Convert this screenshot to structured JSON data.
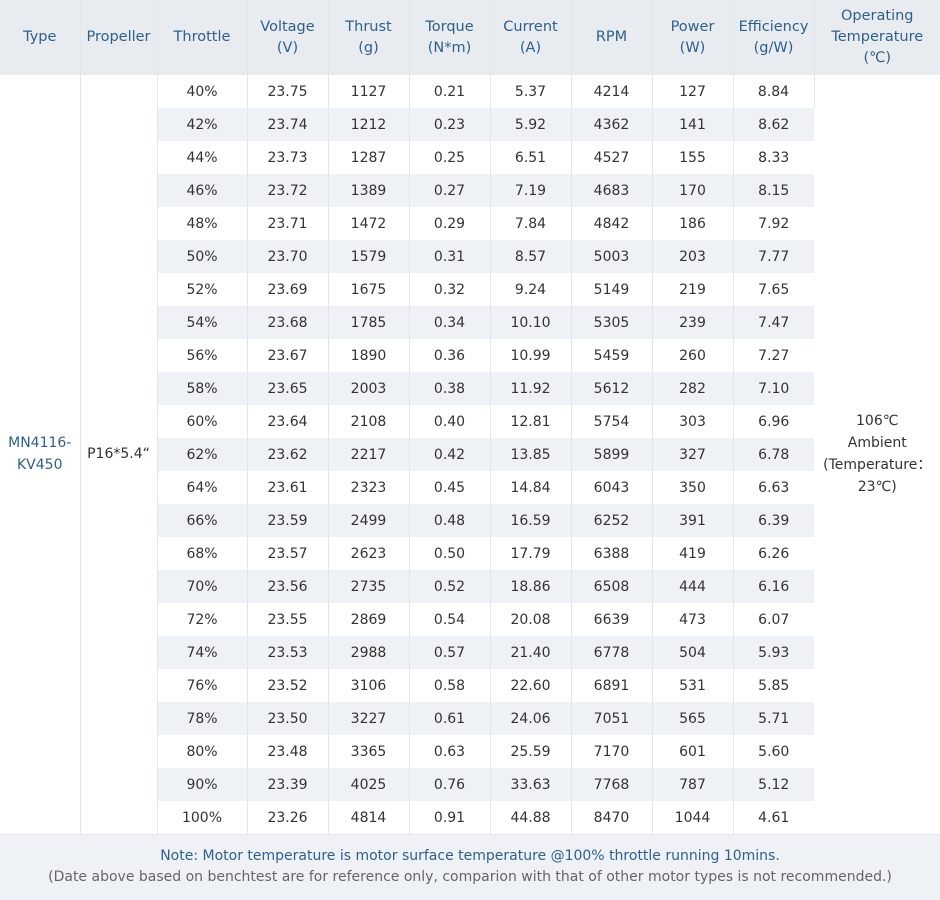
{
  "columns": [
    [
      "Type"
    ],
    [
      "Propeller"
    ],
    [
      "Throttle"
    ],
    [
      "Voltage",
      "(V)"
    ],
    [
      "Thrust",
      "(g)"
    ],
    [
      "Torque",
      "(N*m)"
    ],
    [
      "Current",
      "(A)"
    ],
    [
      "RPM"
    ],
    [
      "Power",
      "(W)"
    ],
    [
      "Efficiency",
      "(g/W)"
    ],
    [
      "Operating",
      "Temperature",
      "(℃)"
    ]
  ],
  "type_label": [
    "MN4116-",
    "KV450"
  ],
  "propeller": "P16*5.4“",
  "operating_temperature": [
    "106℃",
    "Ambient",
    "(Temperature：",
    "23℃)"
  ],
  "rows": [
    [
      "40%",
      "23.75",
      "1127",
      "0.21",
      "5.37",
      "4214",
      "127",
      "8.84"
    ],
    [
      "42%",
      "23.74",
      "1212",
      "0.23",
      "5.92",
      "4362",
      "141",
      "8.62"
    ],
    [
      "44%",
      "23.73",
      "1287",
      "0.25",
      "6.51",
      "4527",
      "155",
      "8.33"
    ],
    [
      "46%",
      "23.72",
      "1389",
      "0.27",
      "7.19",
      "4683",
      "170",
      "8.15"
    ],
    [
      "48%",
      "23.71",
      "1472",
      "0.29",
      "7.84",
      "4842",
      "186",
      "7.92"
    ],
    [
      "50%",
      "23.70",
      "1579",
      "0.31",
      "8.57",
      "5003",
      "203",
      "7.77"
    ],
    [
      "52%",
      "23.69",
      "1675",
      "0.32",
      "9.24",
      "5149",
      "219",
      "7.65"
    ],
    [
      "54%",
      "23.68",
      "1785",
      "0.34",
      "10.10",
      "5305",
      "239",
      "7.47"
    ],
    [
      "56%",
      "23.67",
      "1890",
      "0.36",
      "10.99",
      "5459",
      "260",
      "7.27"
    ],
    [
      "58%",
      "23.65",
      "2003",
      "0.38",
      "11.92",
      "5612",
      "282",
      "7.10"
    ],
    [
      "60%",
      "23.64",
      "2108",
      "0.40",
      "12.81",
      "5754",
      "303",
      "6.96"
    ],
    [
      "62%",
      "23.62",
      "2217",
      "0.42",
      "13.85",
      "5899",
      "327",
      "6.78"
    ],
    [
      "64%",
      "23.61",
      "2323",
      "0.45",
      "14.84",
      "6043",
      "350",
      "6.63"
    ],
    [
      "66%",
      "23.59",
      "2499",
      "0.48",
      "16.59",
      "6252",
      "391",
      "6.39"
    ],
    [
      "68%",
      "23.57",
      "2623",
      "0.50",
      "17.79",
      "6388",
      "419",
      "6.26"
    ],
    [
      "70%",
      "23.56",
      "2735",
      "0.52",
      "18.86",
      "6508",
      "444",
      "6.16"
    ],
    [
      "72%",
      "23.55",
      "2869",
      "0.54",
      "20.08",
      "6639",
      "473",
      "6.07"
    ],
    [
      "74%",
      "23.53",
      "2988",
      "0.57",
      "21.40",
      "6778",
      "504",
      "5.93"
    ],
    [
      "76%",
      "23.52",
      "3106",
      "0.58",
      "22.60",
      "6891",
      "531",
      "5.85"
    ],
    [
      "78%",
      "23.50",
      "3227",
      "0.61",
      "24.06",
      "7051",
      "565",
      "5.71"
    ],
    [
      "80%",
      "23.48",
      "3365",
      "0.63",
      "25.59",
      "7170",
      "601",
      "5.60"
    ],
    [
      "90%",
      "23.39",
      "4025",
      "0.76",
      "33.63",
      "7768",
      "787",
      "5.12"
    ],
    [
      "100%",
      "23.26",
      "4814",
      "0.91",
      "44.88",
      "8470",
      "1044",
      "4.61"
    ]
  ],
  "notes": {
    "line1": "Note: Motor temperature is motor surface temperature @100% throttle running 10mins.",
    "line2": "(Date above based on benchtest are for reference only, comparion with that of other motor types is not recommended.)"
  },
  "colors": {
    "header_bg": "#e8ecf1",
    "header_text": "#2f5f8a",
    "stripe_bg": "#eef1f5",
    "body_text": "#333333"
  }
}
